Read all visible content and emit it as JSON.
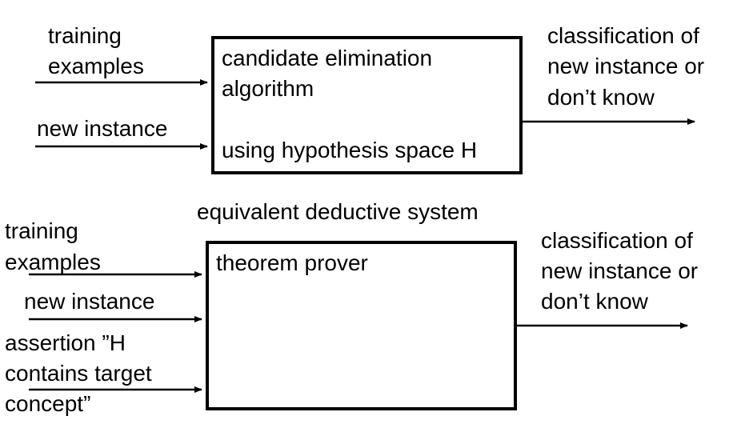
{
  "top": {
    "inputs": {
      "training_line1": "training",
      "training_line2": "examples",
      "new_instance": "new instance"
    },
    "box": {
      "line1": "candidate elimination",
      "line2": "algorithm",
      "line3": "using hypothesis space H"
    },
    "output": {
      "line1": "classification of",
      "line2": "new instance or",
      "line3": "don’t know"
    }
  },
  "bottom": {
    "caption": "equivalent deductive system",
    "inputs": {
      "training_line1": "training",
      "training_line2": "examples",
      "new_instance": "new instance",
      "assertion_line1": "assertion ”H",
      "assertion_line2": "contains target",
      "assertion_line3": "concept”"
    },
    "box": {
      "line1": "theorem prover"
    },
    "output": {
      "line1": "classification of",
      "line2": "new instance or",
      "line3": "don’t know"
    }
  }
}
